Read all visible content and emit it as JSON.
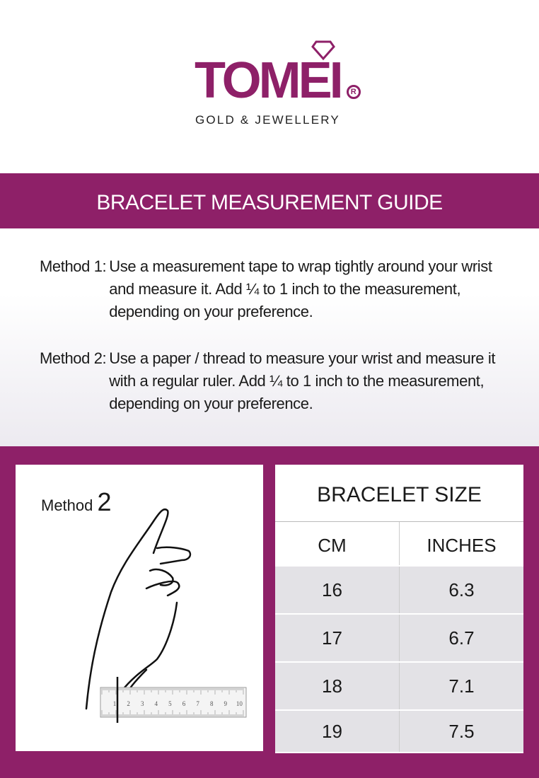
{
  "logo": {
    "brand": "TOMEI",
    "registered": "R",
    "tagline": "GOLD & JEWELLERY"
  },
  "header": {
    "title": "BRACELET MEASUREMENT GUIDE"
  },
  "methods": [
    {
      "label": "Method 1:",
      "text": "Use a measurement tape to wrap tightly around your wrist and measure it. Add ¼ to 1 inch to the measurement, depending on your preference."
    },
    {
      "label": "Method 2:",
      "text": "Use a paper / thread to measure your wrist and measure it with a regular ruler. Add ¼ to 1 inch to the measurement, depending on your preference."
    }
  ],
  "illustration": {
    "label": "Method",
    "number": "2",
    "ruler_ticks": [
      "1",
      "2",
      "3",
      "4",
      "5",
      "6",
      "7",
      "8",
      "9",
      "10"
    ]
  },
  "table": {
    "title": "BRACELET SIZE",
    "headers": [
      "CM",
      "INCHES"
    ],
    "rows": [
      [
        "16",
        "6.3"
      ],
      [
        "17",
        "6.7"
      ],
      [
        "18",
        "7.1"
      ],
      [
        "19",
        "7.5"
      ]
    ]
  },
  "colors": {
    "brand": "#8e2068",
    "row_bg": "#e3e2e6"
  }
}
